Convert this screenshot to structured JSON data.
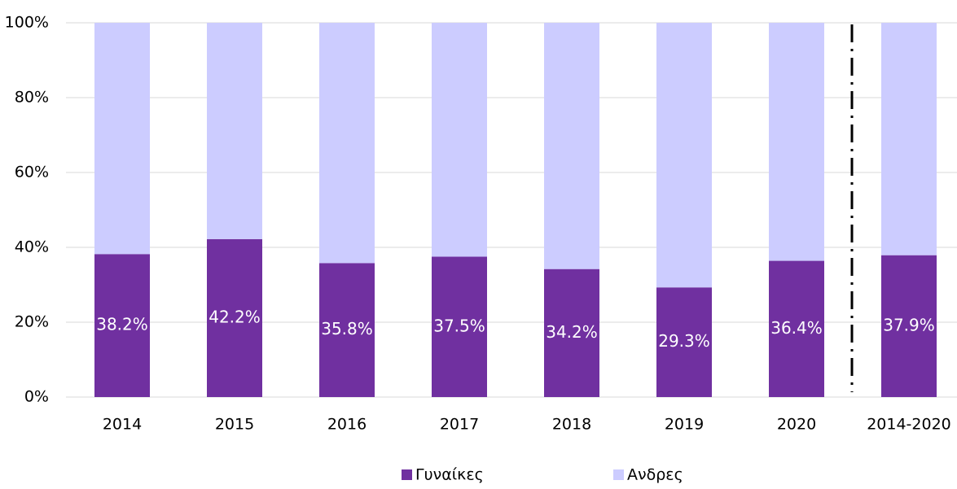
{
  "chart_data": {
    "type": "stacked_bar",
    "categories": [
      "2014",
      "2015",
      "2016",
      "2017",
      "2018",
      "2019",
      "2020",
      "2014-2020"
    ],
    "series": [
      {
        "name": "Γυναίκες",
        "color": "#7030a0",
        "values": [
          38.2,
          42.2,
          35.8,
          37.5,
          34.2,
          29.3,
          36.4,
          37.9
        ],
        "value_labels": [
          "38.2%",
          "42.2%",
          "35.8%",
          "37.5%",
          "34.2%",
          "29.3%",
          "36.4%",
          "37.9%"
        ]
      },
      {
        "name": "Ανδρες",
        "color": "#ccccff",
        "values": [
          61.8,
          57.8,
          64.2,
          62.5,
          65.8,
          70.7,
          63.6,
          62.1
        ]
      }
    ],
    "ylim": [
      0,
      100
    ],
    "yticks": [
      {
        "value": 0,
        "label": "0%"
      },
      {
        "value": 20,
        "label": "20%"
      },
      {
        "value": 40,
        "label": "40%"
      },
      {
        "value": 60,
        "label": "60%"
      },
      {
        "value": 80,
        "label": "80%"
      },
      {
        "value": 100,
        "label": "100%"
      }
    ],
    "grid": true,
    "legend": "bottom"
  }
}
